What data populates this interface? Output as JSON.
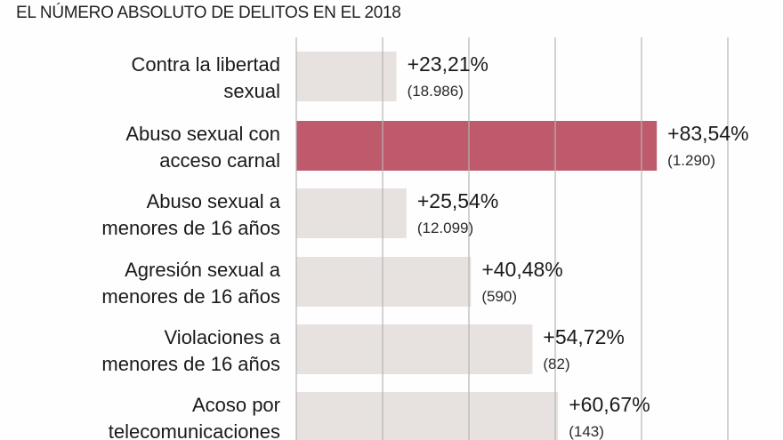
{
  "subtitle": "EL NÚMERO ABSOLUTO DE DELITOS EN EL 2018",
  "colors": {
    "bar": "#e7e2df",
    "highlight": "#bf5a6c",
    "grid": "#b5b5b5",
    "text": "#1a1a1a"
  },
  "chart_data": {
    "type": "bar",
    "orientation": "horizontal",
    "title": "",
    "subtitle": "EL NÚMERO ABSOLUTO DE DELITOS EN EL 2018",
    "xlabel": "",
    "ylabel": "",
    "xlim": [
      0,
      100
    ],
    "grid": true,
    "grid_step": 20,
    "categories": [
      [
        "Contra la libertad",
        "sexual"
      ],
      [
        "Abuso sexual con",
        "acceso carnal"
      ],
      [
        "Abuso sexual a",
        "menores de 16 años"
      ],
      [
        "Agresión sexual a",
        "menores de 16 años"
      ],
      [
        "Violaciones a",
        "menores de 16 años"
      ],
      [
        "Acoso por",
        "telecomunicaciones"
      ]
    ],
    "values": [
      23.21,
      83.54,
      25.54,
      40.48,
      54.72,
      60.67
    ],
    "value_labels": [
      "+23,21%",
      "+83,54%",
      "+25,54%",
      "+40,48%",
      "+54,72%",
      "+60,67%"
    ],
    "absolute_labels": [
      "(18.986)",
      "(1.290)",
      "(12.099)",
      "(590)",
      "(82)",
      "(143)"
    ],
    "highlight_index": 1
  }
}
